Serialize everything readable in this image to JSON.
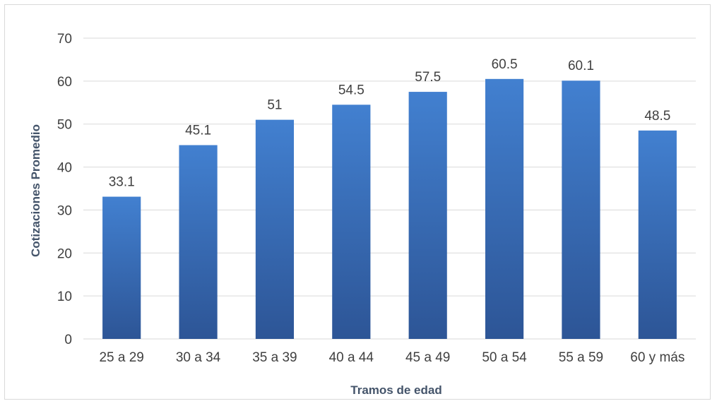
{
  "chart_data": {
    "type": "bar",
    "categories": [
      "25 a 29",
      "30 a 34",
      "35 a 39",
      "40 a 44",
      "45 a 49",
      "50 a 54",
      "55 a 59",
      "60 y más"
    ],
    "values": [
      33.1,
      45.1,
      51,
      54.5,
      57.5,
      60.5,
      60.1,
      48.5
    ],
    "data_labels": [
      "33.1",
      "45.1",
      "51",
      "54.5",
      "57.5",
      "60.5",
      "60.1",
      "48.5"
    ],
    "title": "",
    "xlabel": "Tramos de edad",
    "ylabel": "Cotizaciones Promedio",
    "ylim": [
      0,
      70
    ],
    "yticks": [
      0,
      10,
      20,
      30,
      40,
      50,
      60,
      70
    ],
    "grid": true,
    "legend": "none",
    "colors": {
      "bar_top": "#4280d0",
      "bar_bottom": "#2d5596",
      "grid": "#d9d9d9",
      "text": "#404040",
      "axis_title": "#44546a"
    }
  }
}
